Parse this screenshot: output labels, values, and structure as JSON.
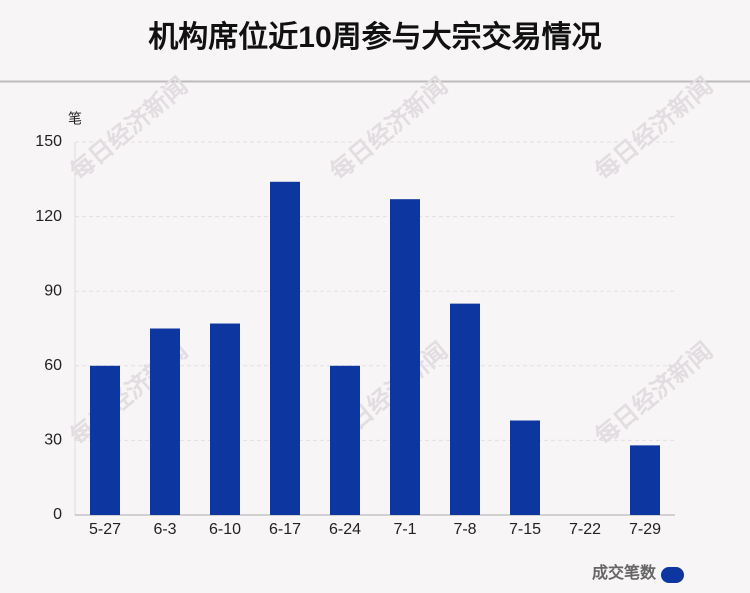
{
  "chart_data": {
    "type": "bar",
    "title": "机构席位近10周参与大宗交易情况",
    "y_unit": "笔",
    "watermark": "每日经济新闻",
    "categories": [
      "5-27",
      "6-3",
      "6-10",
      "6-17",
      "6-24",
      "7-1",
      "7-8",
      "7-15",
      "7-22",
      "7-29"
    ],
    "series": [
      {
        "name": "成交笔数",
        "color": "#0d36a0",
        "values": [
          60,
          75,
          77,
          134,
          60,
          127,
          85,
          38,
          0,
          28
        ]
      }
    ],
    "ylim": [
      0,
      150
    ],
    "yticks": [
      0,
      30,
      60,
      90,
      120,
      150
    ],
    "grid": true,
    "legend": "bottom-right"
  }
}
